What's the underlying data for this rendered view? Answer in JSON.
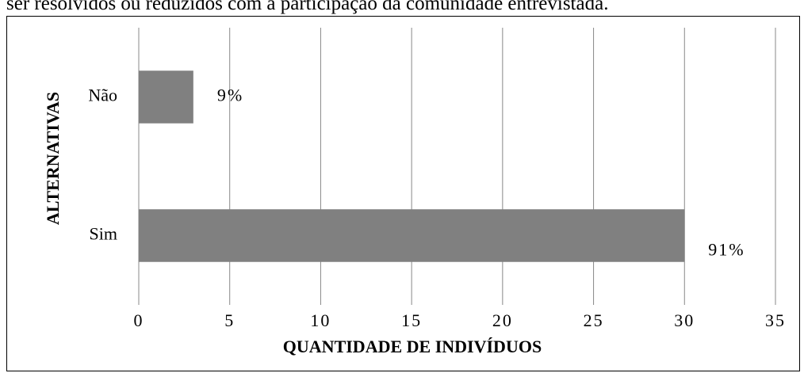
{
  "caption": "ser resolvidos ou reduzidos com a participação da comunidade entrevistada.",
  "chart_data": {
    "type": "hbar",
    "categories": [
      "Não",
      "Sim"
    ],
    "values": [
      3,
      30
    ],
    "value_labels": [
      "9%",
      "91%"
    ],
    "color": "#808080",
    "xlim": [
      0,
      35
    ],
    "xticks": [
      0,
      5,
      10,
      15,
      20,
      25,
      30,
      35
    ],
    "xlabel": "QUANTIDADE DE INDIVÍDUOS",
    "ylabel": "ALTERNATIVAS",
    "grid": true
  }
}
